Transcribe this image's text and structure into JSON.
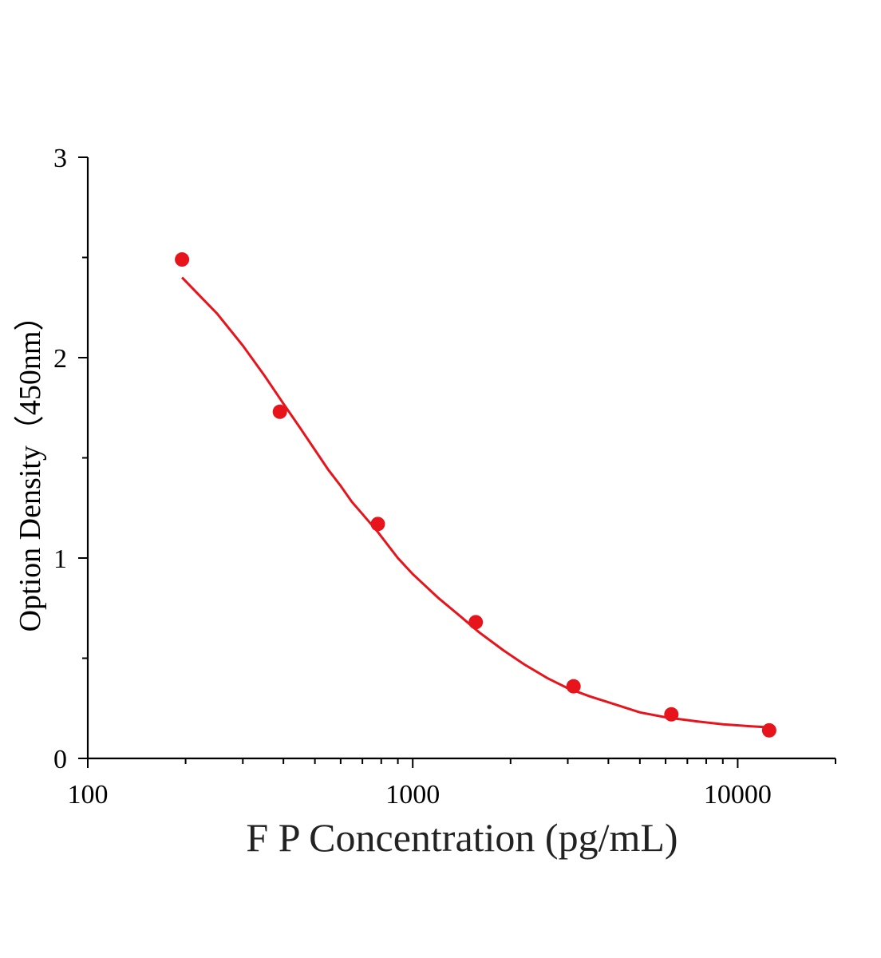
{
  "chart_data": {
    "type": "scatter",
    "xlabel": "F P Concentration (pg/mL)",
    "ylabel": "Option Density（450nm）",
    "x_scale": "log",
    "xlim": [
      100,
      20000
    ],
    "ylim": [
      0,
      3
    ],
    "x_ticks": [
      100,
      1000,
      10000
    ],
    "x_tick_labels": [
      "100",
      "1000",
      "10000"
    ],
    "y_ticks": [
      0,
      1,
      2,
      3
    ],
    "y_tick_labels": [
      "0",
      "1",
      "2",
      "3"
    ],
    "grid": false,
    "color": "#e8141c",
    "series": [
      {
        "type": "scatter",
        "x": [
          195,
          390,
          781,
          1563,
          3125,
          6250,
          12500
        ],
        "y": [
          2.49,
          1.73,
          1.17,
          0.68,
          0.36,
          0.22,
          0.14
        ]
      },
      {
        "type": "line",
        "x": [
          195,
          250,
          300,
          350,
          400,
          450,
          500,
          550,
          600,
          650,
          700,
          781,
          900,
          1000,
          1200,
          1400,
          1600,
          1900,
          2200,
          2600,
          3000,
          3500,
          4000,
          5000,
          6000,
          7500,
          9000,
          11000,
          12500
        ],
        "y": [
          2.4,
          2.22,
          2.06,
          1.91,
          1.77,
          1.65,
          1.54,
          1.44,
          1.36,
          1.28,
          1.22,
          1.13,
          1.0,
          0.92,
          0.8,
          0.71,
          0.63,
          0.54,
          0.47,
          0.4,
          0.35,
          0.31,
          0.28,
          0.23,
          0.205,
          0.185,
          0.17,
          0.16,
          0.155
        ]
      }
    ]
  }
}
